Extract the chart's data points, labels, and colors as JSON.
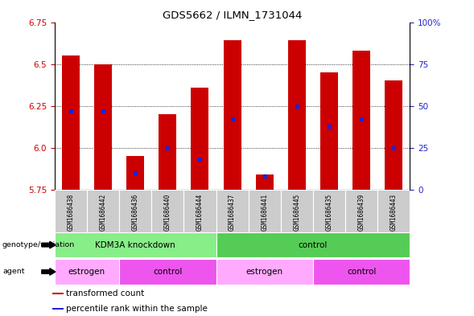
{
  "title": "GDS5662 / ILMN_1731044",
  "samples": [
    "GSM1686438",
    "GSM1686442",
    "GSM1686436",
    "GSM1686440",
    "GSM1686444",
    "GSM1686437",
    "GSM1686441",
    "GSM1686445",
    "GSM1686435",
    "GSM1686439",
    "GSM1686443"
  ],
  "transformed_count": [
    6.55,
    6.5,
    5.95,
    6.2,
    6.36,
    6.64,
    5.84,
    6.64,
    6.45,
    6.58,
    6.4
  ],
  "percentile_rank": [
    47,
    47,
    10,
    25,
    18,
    42,
    8,
    50,
    38,
    42,
    25
  ],
  "ylim_left": [
    5.75,
    6.75
  ],
  "ylim_right": [
    0,
    100
  ],
  "yticks_left": [
    5.75,
    6.0,
    6.25,
    6.5,
    6.75
  ],
  "yticks_right": [
    0,
    25,
    50,
    75,
    100
  ],
  "ytick_labels_right": [
    "0",
    "25",
    "50",
    "75",
    "100%"
  ],
  "bar_color": "#cc0000",
  "blue_color": "#2222cc",
  "baseline": 5.75,
  "genotype_groups": [
    {
      "label": "KDM3A knockdown",
      "start": 0,
      "end": 4,
      "color": "#88ee88"
    },
    {
      "label": "control",
      "start": 5,
      "end": 10,
      "color": "#55cc55"
    }
  ],
  "agent_groups": [
    {
      "label": "estrogen",
      "start": 0,
      "end": 1,
      "color": "#ffaaff"
    },
    {
      "label": "control",
      "start": 2,
      "end": 4,
      "color": "#ee55ee"
    },
    {
      "label": "estrogen",
      "start": 5,
      "end": 7,
      "color": "#ffaaff"
    },
    {
      "label": "control",
      "start": 8,
      "end": 10,
      "color": "#ee55ee"
    }
  ],
  "legend_items": [
    {
      "label": "transformed count",
      "color": "#cc0000"
    },
    {
      "label": "percentile rank within the sample",
      "color": "#2222cc"
    }
  ],
  "bar_width": 0.55,
  "tick_label_color_left": "#cc0000",
  "tick_label_color_right": "#2222cc",
  "grid_yticks": [
    6.0,
    6.25,
    6.5
  ],
  "sample_box_color": "#cccccc",
  "genotype_label": "genotype/variation",
  "agent_label": "agent"
}
